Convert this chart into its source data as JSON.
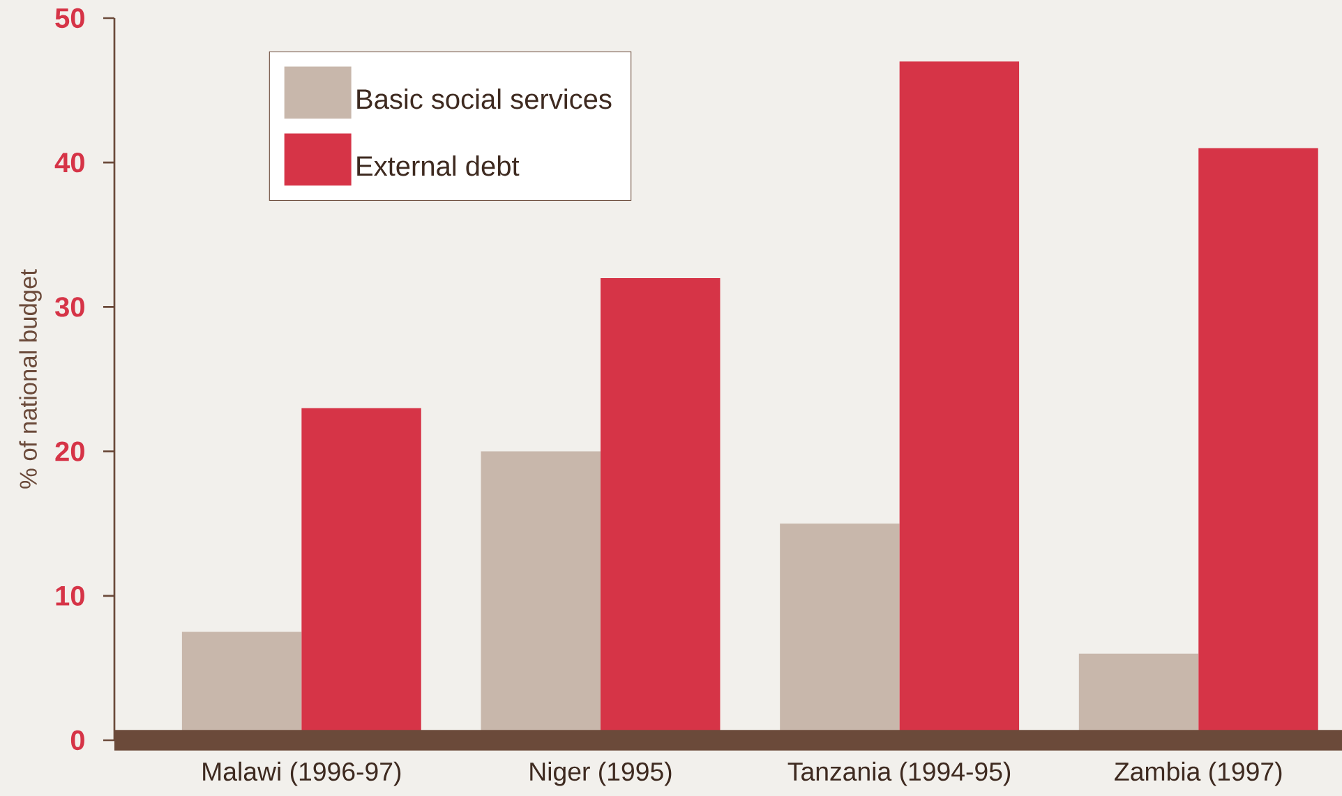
{
  "chart_data": {
    "type": "bar",
    "ylabel": "% of national budget",
    "categories": [
      "Malawi (1996-97)",
      "Niger (1995)",
      "Tanzania (1994-95)",
      "Zambia (1997)"
    ],
    "series": [
      {
        "name": "Basic social services",
        "color": "#c8b7ab",
        "values": [
          7.5,
          20,
          15,
          6
        ]
      },
      {
        "name": "External debt",
        "color": "#d63447",
        "values": [
          23,
          32,
          47,
          41
        ]
      }
    ],
    "ylim": [
      0,
      50
    ],
    "yticks": [
      0,
      10,
      20,
      30,
      40,
      50
    ],
    "legend": "top left",
    "grid": false
  }
}
